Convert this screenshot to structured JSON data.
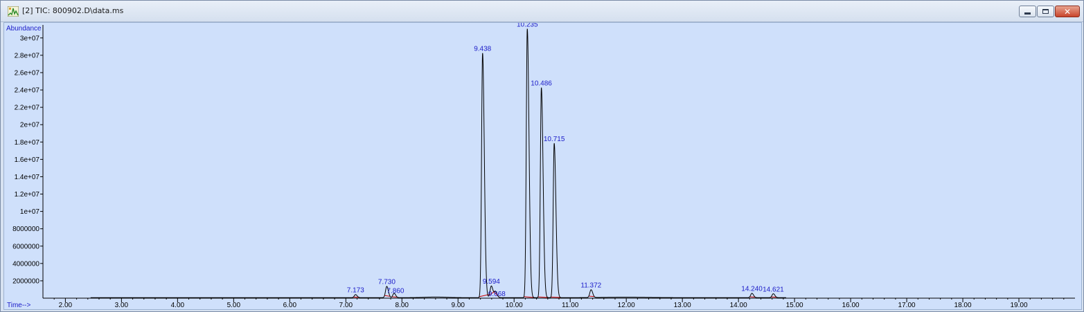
{
  "window": {
    "title": "[2] TIC: 800902.D\\data.ms",
    "icon": "chromatogram-window-icon",
    "controls": {
      "minimize_icon": "minimize-icon",
      "maximize_icon": "maximize-icon",
      "close_icon": "close-icon",
      "close_glyph": "✕"
    }
  },
  "chart_data": {
    "type": "line",
    "ylabel": "Abundance",
    "xlabel": "Time-->",
    "xlim": [
      1.6,
      20.0
    ],
    "ylim": [
      0,
      31500000
    ],
    "x_ticks": [
      "2.00",
      "3.00",
      "4.00",
      "5.00",
      "6.00",
      "7.00",
      "8.00",
      "9.00",
      "10.00",
      "11.00",
      "12.00",
      "13.00",
      "14.00",
      "15.00",
      "16.00",
      "17.00",
      "18.00",
      "19.00"
    ],
    "y_ticks": [
      {
        "value": 2000000,
        "label": "2000000"
      },
      {
        "value": 4000000,
        "label": "4000000"
      },
      {
        "value": 6000000,
        "label": "6000000"
      },
      {
        "value": 8000000,
        "label": "8000000"
      },
      {
        "value": 10000000,
        "label": "1e+07"
      },
      {
        "value": 12000000,
        "label": "1.2e+07"
      },
      {
        "value": 14000000,
        "label": "1.4e+07"
      },
      {
        "value": 16000000,
        "label": "1.6e+07"
      },
      {
        "value": 18000000,
        "label": "1.8e+07"
      },
      {
        "value": 20000000,
        "label": "2e+07"
      },
      {
        "value": 22000000,
        "label": "2.2e+07"
      },
      {
        "value": 24000000,
        "label": "2.4e+07"
      },
      {
        "value": 26000000,
        "label": "2.6e+07"
      },
      {
        "value": 28000000,
        "label": "2.8e+07"
      },
      {
        "value": 30000000,
        "label": "3e+07"
      }
    ],
    "peaks": [
      {
        "label": "7.173",
        "rt": 7.173,
        "height": 350000
      },
      {
        "label": "7.730",
        "rt": 7.73,
        "height": 1300000
      },
      {
        "label": "7.860",
        "rt": 7.86,
        "height": 500000
      },
      {
        "label": "9.438",
        "rt": 9.438,
        "height": 28200000
      },
      {
        "label": "9.594",
        "rt": 9.594,
        "height": 1350000
      },
      {
        "label": "9.668",
        "rt": 9.668,
        "height": 700000
      },
      {
        "label": "10.235",
        "rt": 10.235,
        "height": 31000000
      },
      {
        "label": "10.486",
        "rt": 10.486,
        "height": 24200000
      },
      {
        "label": "10.715",
        "rt": 10.715,
        "height": 17800000
      },
      {
        "label": "11.372",
        "rt": 11.372,
        "height": 900000
      },
      {
        "label": "14.240",
        "rt": 14.24,
        "height": 500000
      },
      {
        "label": "14.621",
        "rt": 14.621,
        "height": 450000
      }
    ],
    "colors": {
      "trace": "#000000",
      "baseline": "#cc0000",
      "peak_label": "#1c1cc8",
      "axis_label": "#1c1cc8",
      "tick_label": "#000000",
      "plot_background": "#cfe0fb"
    }
  }
}
